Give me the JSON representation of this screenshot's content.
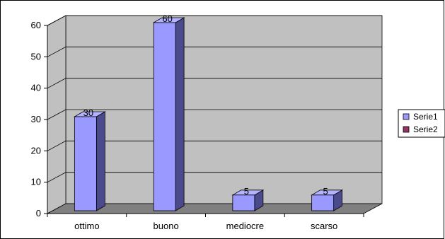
{
  "chart_data": {
    "type": "bar",
    "categories": [
      "ottimo",
      "buono",
      "mediocre",
      "scarso"
    ],
    "series": [
      {
        "name": "Serie1",
        "values": [
          30,
          60,
          5,
          5
        ],
        "color": "#9999ff"
      },
      {
        "name": "Serie2",
        "values": [
          null,
          null,
          null,
          null
        ],
        "color": "#993366"
      }
    ],
    "data_labels": [
      "30",
      "60",
      "5",
      "5"
    ],
    "ylim": [
      0,
      60
    ],
    "yticks": [
      0,
      10,
      20,
      30,
      40,
      50,
      60
    ],
    "grid": true,
    "legend_position": "right",
    "colors": {
      "wall": "#c0c0c0",
      "floor": "#808080",
      "bar_front": "#9999ff",
      "bar_side": "#4a4a8c",
      "bar_top": "#b3b3ff"
    }
  }
}
